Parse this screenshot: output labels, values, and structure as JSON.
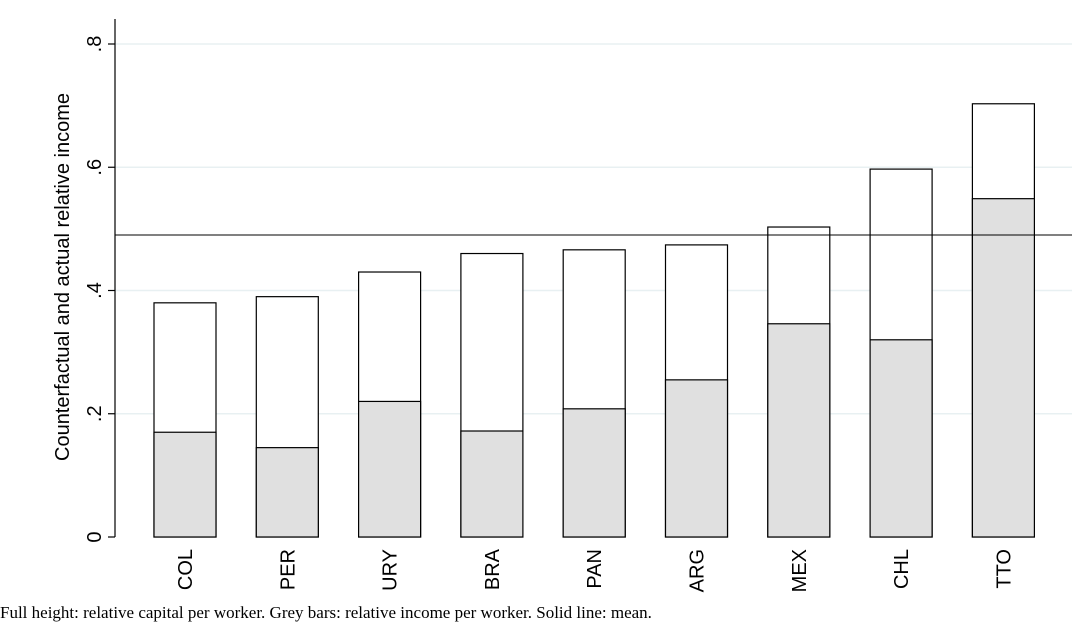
{
  "chart_data": {
    "type": "bar",
    "categories": [
      "COL",
      "PER",
      "URY",
      "BRA",
      "PAN",
      "ARG",
      "MEX",
      "CHL",
      "TTO"
    ],
    "series": [
      {
        "values": [
          0.38,
          0.39,
          0.43,
          0.46,
          0.466,
          0.474,
          0.503,
          0.597,
          0.703
        ],
        "color": "#ffffff"
      },
      {
        "values": [
          0.17,
          0.145,
          0.22,
          0.172,
          0.208,
          0.255,
          0.346,
          0.32,
          0.549
        ],
        "color": "#e0e0e0"
      }
    ],
    "reference_line": 0.49,
    "ylabel": "Counterfactual and actual relative income",
    "xlabel": "",
    "ylim": [
      0,
      0.85
    ],
    "yticks": [
      0,
      0.2,
      0.4,
      0.6,
      0.8
    ],
    "ytick_labels": [
      "0",
      ".2",
      ".4",
      ".6",
      ".8"
    ],
    "grid": true,
    "grid_color": "#e8f0f2",
    "caption": "Full height: relative capital per worker. Grey bars: relative income per worker. Solid line: mean."
  }
}
